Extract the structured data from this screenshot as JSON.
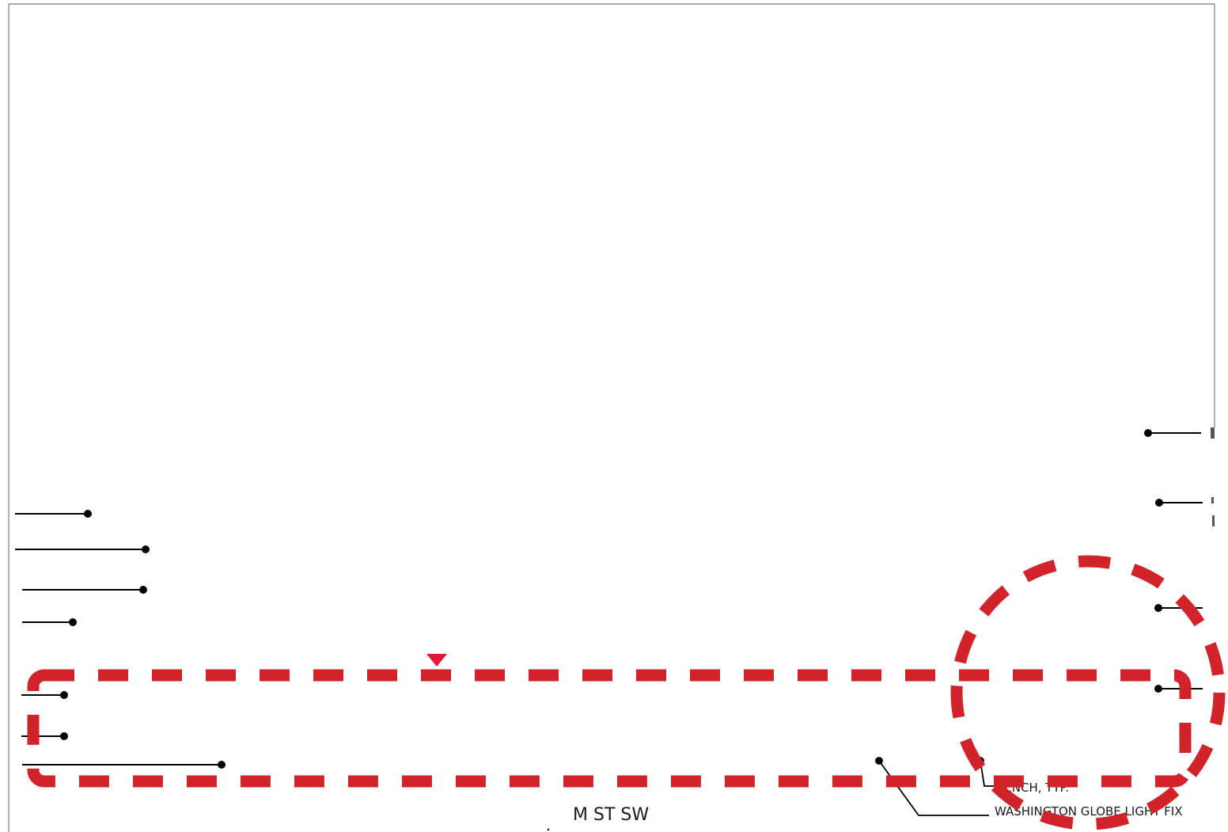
{
  "sheet": {
    "street_label": "M ST SW",
    "bench_label": "BENCH, TYP.",
    "light_label": "WASHINGTON GLOBE LIGHT FIX"
  },
  "colors": {
    "markup_red": "#d2232a",
    "line": "#000000",
    "border": "#7a7a7a"
  }
}
